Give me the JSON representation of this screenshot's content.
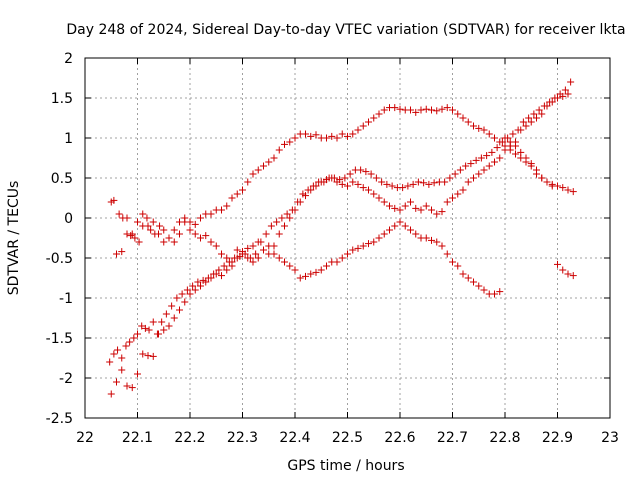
{
  "chart_data": {
    "type": "scatter",
    "title": "Day 248 of 2024, Sidereal Day-to-day VTEC variation (SDTVAR) for receiver lkta",
    "xlabel": "GPS time / hours",
    "ylabel": "SDTVAR / TECUs",
    "xlim": [
      22,
      23
    ],
    "ylim": [
      -2.5,
      2
    ],
    "xticks": [
      22,
      22.1,
      22.2,
      22.3,
      22.4,
      22.5,
      22.6,
      22.7,
      22.8,
      22.9,
      23
    ],
    "xtick_labels": [
      "22",
      "22.1",
      "22.2",
      "22.3",
      "22.4",
      "22.5",
      "22.6",
      "22.7",
      "22.8",
      "22.9",
      "23"
    ],
    "yticks": [
      -2.5,
      -2,
      -1.5,
      -1,
      -0.5,
      0,
      0.5,
      1,
      1.5,
      2
    ],
    "ytick_labels": [
      "-2.5",
      "-2",
      "-1.5",
      "-1",
      "-0.5",
      "0",
      "0.5",
      "1",
      "1.5",
      "2"
    ],
    "grid": true,
    "marker": "+",
    "color": "#cc0000",
    "series": [
      {
        "x": [
          22.047,
          22.055,
          22.062,
          22.07,
          22.078,
          22.085,
          22.093,
          22.1,
          22.108,
          22.115,
          22.122,
          22.13,
          22.138,
          22.146,
          22.155,
          22.165,
          22.175,
          22.185,
          22.195,
          22.205,
          22.215,
          22.225,
          22.235,
          22.245,
          22.255,
          22.265,
          22.275,
          22.285,
          22.295,
          22.305,
          22.315,
          22.325,
          22.335,
          22.345,
          22.355,
          22.365,
          22.375,
          22.385,
          22.395,
          22.405,
          22.415,
          22.425,
          22.435,
          22.445,
          22.455,
          22.465,
          22.475,
          22.485,
          22.495,
          22.505,
          22.515,
          22.525,
          22.535,
          22.545,
          22.555,
          22.565,
          22.575,
          22.585,
          22.595,
          22.605,
          22.615,
          22.625,
          22.635,
          22.645,
          22.655,
          22.665,
          22.675,
          22.685,
          22.695,
          22.705,
          22.715,
          22.725,
          22.735,
          22.745,
          22.755,
          22.765,
          22.775,
          22.785,
          22.795,
          22.805,
          22.815,
          22.825,
          22.835,
          22.845,
          22.855,
          22.865,
          22.875,
          22.885,
          22.895,
          22.905,
          22.915,
          22.925
        ],
        "y": [
          -1.8,
          -1.7,
          -1.65,
          -1.75,
          -1.6,
          -1.55,
          -1.5,
          -1.45,
          -1.35,
          -1.38,
          -1.4,
          -1.3,
          -1.45,
          -1.3,
          -1.2,
          -1.1,
          -1.0,
          -0.95,
          -0.9,
          -0.85,
          -0.8,
          -0.78,
          -0.75,
          -0.7,
          -0.65,
          -0.6,
          -0.55,
          -0.5,
          -0.48,
          -0.45,
          -0.5,
          -0.45,
          -0.3,
          -0.2,
          -0.1,
          -0.05,
          0.0,
          0.05,
          0.1,
          0.2,
          0.3,
          0.35,
          0.4,
          0.45,
          0.45,
          0.5,
          0.5,
          0.48,
          0.5,
          0.55,
          0.6,
          0.6,
          0.58,
          0.55,
          0.5,
          0.45,
          0.42,
          0.4,
          0.38,
          0.38,
          0.4,
          0.42,
          0.45,
          0.44,
          0.42,
          0.44,
          0.45,
          0.45,
          0.5,
          0.55,
          0.6,
          0.65,
          0.68,
          0.72,
          0.75,
          0.78,
          0.82,
          0.88,
          0.95,
          1.0,
          1.05,
          1.1,
          1.2,
          1.25,
          1.3,
          1.35,
          1.4,
          1.45,
          1.5,
          1.55,
          1.6,
          1.7
        ]
      },
      {
        "x": [
          22.05,
          22.055,
          22.065,
          22.072,
          22.08,
          22.087,
          22.095,
          22.103,
          22.11,
          22.118,
          22.125,
          22.133,
          22.142,
          22.15,
          22.16,
          22.17,
          22.18,
          22.19,
          22.2,
          22.21,
          22.22,
          22.23,
          22.24,
          22.25,
          22.26,
          22.27,
          22.28,
          22.29,
          22.3,
          22.31,
          22.32,
          22.33,
          22.34,
          22.35,
          22.36,
          22.37,
          22.38,
          22.39,
          22.4,
          22.41,
          22.42,
          22.43,
          22.44,
          22.45,
          22.46,
          22.47,
          22.48,
          22.49,
          22.5,
          22.51,
          22.52,
          22.53,
          22.54,
          22.55,
          22.56,
          22.57,
          22.58,
          22.59,
          22.6,
          22.61,
          22.62,
          22.63,
          22.64,
          22.65,
          22.66,
          22.67,
          22.68,
          22.69,
          22.7,
          22.71,
          22.72,
          22.73,
          22.74,
          22.75,
          22.76,
          22.77,
          22.78,
          22.79,
          22.8,
          22.81,
          22.82,
          22.83,
          22.84,
          22.85,
          22.86,
          22.87,
          22.88,
          22.89,
          22.9,
          22.91,
          22.92,
          22.93
        ],
        "y": [
          0.2,
          0.22,
          0.05,
          0.0,
          -0.2,
          -0.22,
          -0.25,
          -0.3,
          -0.1,
          0.0,
          -0.15,
          -0.2,
          -0.1,
          -0.15,
          -0.25,
          -0.3,
          -0.2,
          -0.05,
          -0.15,
          -0.2,
          -0.25,
          -0.22,
          -0.3,
          -0.35,
          -0.45,
          -0.5,
          -0.55,
          -0.4,
          -0.45,
          -0.5,
          -0.55,
          -0.5,
          -0.4,
          -0.35,
          -0.45,
          -0.5,
          -0.55,
          -0.6,
          -0.65,
          -0.75,
          -0.73,
          -0.7,
          -0.68,
          -0.65,
          -0.6,
          -0.55,
          -0.55,
          -0.5,
          -0.45,
          -0.4,
          -0.38,
          -0.35,
          -0.32,
          -0.3,
          -0.25,
          -0.2,
          -0.15,
          -0.1,
          -0.05,
          -0.1,
          -0.15,
          -0.2,
          -0.25,
          -0.25,
          -0.28,
          -0.3,
          -0.35,
          -0.45,
          -0.55,
          -0.6,
          -0.7,
          -0.75,
          -0.8,
          -0.85,
          -0.9,
          -0.95,
          -0.95,
          -0.92,
          1.0,
          0.95,
          0.9,
          0.82,
          0.75,
          0.68,
          0.6,
          0.5,
          0.45,
          0.42,
          0.4,
          0.38,
          0.35,
          0.33
        ]
      },
      {
        "x": [
          22.05,
          22.06,
          22.07,
          22.08,
          22.09,
          22.1,
          22.11,
          22.12,
          22.13,
          22.14,
          22.15,
          22.16,
          22.17,
          22.18,
          22.19,
          22.2,
          22.21,
          22.22,
          22.23,
          22.24,
          22.25,
          22.26,
          22.27,
          22.28,
          22.29,
          22.3,
          22.31,
          22.32,
          22.33,
          22.34,
          22.35,
          22.36,
          22.37,
          22.38,
          22.39,
          22.4,
          22.41,
          22.42,
          22.43,
          22.44,
          22.45,
          22.46,
          22.47,
          22.48,
          22.49,
          22.5,
          22.51,
          22.52,
          22.53,
          22.54,
          22.55,
          22.56,
          22.57,
          22.58,
          22.59,
          22.6,
          22.61,
          22.62,
          22.63,
          22.64,
          22.65,
          22.66,
          22.67,
          22.68,
          22.69,
          22.7,
          22.71,
          22.72,
          22.73,
          22.74,
          22.75,
          22.76,
          22.77,
          22.78,
          22.79,
          22.8,
          22.81,
          22.82,
          22.83,
          22.84,
          22.85,
          22.86,
          22.87,
          22.88,
          22.89,
          22.9,
          22.91,
          22.92
        ],
        "y": [
          -2.2,
          -2.05,
          -1.9,
          -2.1,
          -2.12,
          -1.95,
          -1.7,
          -1.72,
          -1.73,
          -1.45,
          -1.4,
          -1.35,
          -1.25,
          -1.15,
          -1.05,
          -0.95,
          -0.9,
          -0.85,
          -0.8,
          -0.75,
          -0.7,
          -0.72,
          -0.65,
          -0.6,
          -0.5,
          -0.42,
          -0.38,
          -0.35,
          -0.3,
          -0.4,
          -0.45,
          -0.35,
          -0.2,
          -0.1,
          0.0,
          0.1,
          0.2,
          0.28,
          0.35,
          0.4,
          0.45,
          0.48,
          0.5,
          0.45,
          0.42,
          0.4,
          0.45,
          0.42,
          0.38,
          0.35,
          0.3,
          0.25,
          0.2,
          0.15,
          0.12,
          0.1,
          0.15,
          0.2,
          0.12,
          0.1,
          0.15,
          0.1,
          0.05,
          0.08,
          0.2,
          0.25,
          0.3,
          0.35,
          0.45,
          0.5,
          0.55,
          0.6,
          0.65,
          0.7,
          0.75,
          0.85,
          0.9,
          0.95,
          1.1,
          1.15,
          1.2,
          1.25,
          1.3,
          1.4,
          1.45,
          1.5,
          1.52,
          1.55
        ]
      },
      {
        "x": [
          22.06,
          22.07,
          22.08,
          22.09,
          22.1,
          22.11,
          22.12,
          22.13,
          22.14,
          22.15,
          22.16,
          22.17,
          22.18,
          22.19,
          22.2,
          22.21,
          22.22,
          22.23,
          22.24,
          22.25,
          22.26,
          22.27,
          22.28,
          22.29,
          22.3,
          22.31,
          22.32,
          22.33,
          22.34,
          22.35,
          22.36,
          22.37,
          22.38,
          22.39,
          22.4,
          22.41,
          22.42,
          22.43,
          22.44,
          22.45,
          22.46,
          22.47,
          22.48,
          22.49,
          22.5,
          22.51,
          22.52,
          22.53,
          22.54,
          22.55,
          22.56,
          22.57,
          22.58,
          22.59,
          22.6,
          22.61,
          22.62,
          22.63,
          22.64,
          22.65,
          22.66,
          22.67,
          22.68,
          22.69,
          22.7,
          22.71,
          22.72,
          22.73,
          22.74,
          22.75,
          22.76,
          22.77,
          22.78,
          22.79,
          22.8,
          22.81,
          22.82,
          22.83,
          22.84,
          22.85,
          22.86,
          22.87,
          22.88,
          22.89,
          22.9,
          22.91,
          22.92,
          22.93
        ],
        "y": [
          -0.45,
          -0.42,
          0.0,
          -0.2,
          -0.05,
          0.05,
          -0.1,
          -0.05,
          -0.2,
          -0.3,
          -0.25,
          -0.15,
          -0.05,
          0.0,
          -0.05,
          -0.08,
          0.0,
          0.05,
          0.05,
          0.1,
          0.1,
          0.15,
          0.25,
          0.3,
          0.35,
          0.45,
          0.55,
          0.6,
          0.65,
          0.7,
          0.75,
          0.85,
          0.92,
          0.95,
          1.0,
          1.05,
          1.05,
          1.02,
          1.04,
          1.0,
          1.0,
          1.02,
          1.0,
          1.05,
          1.02,
          1.05,
          1.1,
          1.15,
          1.2,
          1.25,
          1.3,
          1.35,
          1.38,
          1.38,
          1.36,
          1.35,
          1.35,
          1.32,
          1.35,
          1.36,
          1.35,
          1.34,
          1.36,
          1.38,
          1.35,
          1.3,
          1.25,
          1.2,
          1.15,
          1.12,
          1.1,
          1.05,
          1.0,
          0.95,
          0.9,
          0.85,
          0.8,
          0.75,
          0.7,
          0.65,
          0.55,
          0.5,
          0.45,
          0.4,
          -0.58,
          -0.65,
          -0.7,
          -0.72
        ]
      }
    ]
  }
}
